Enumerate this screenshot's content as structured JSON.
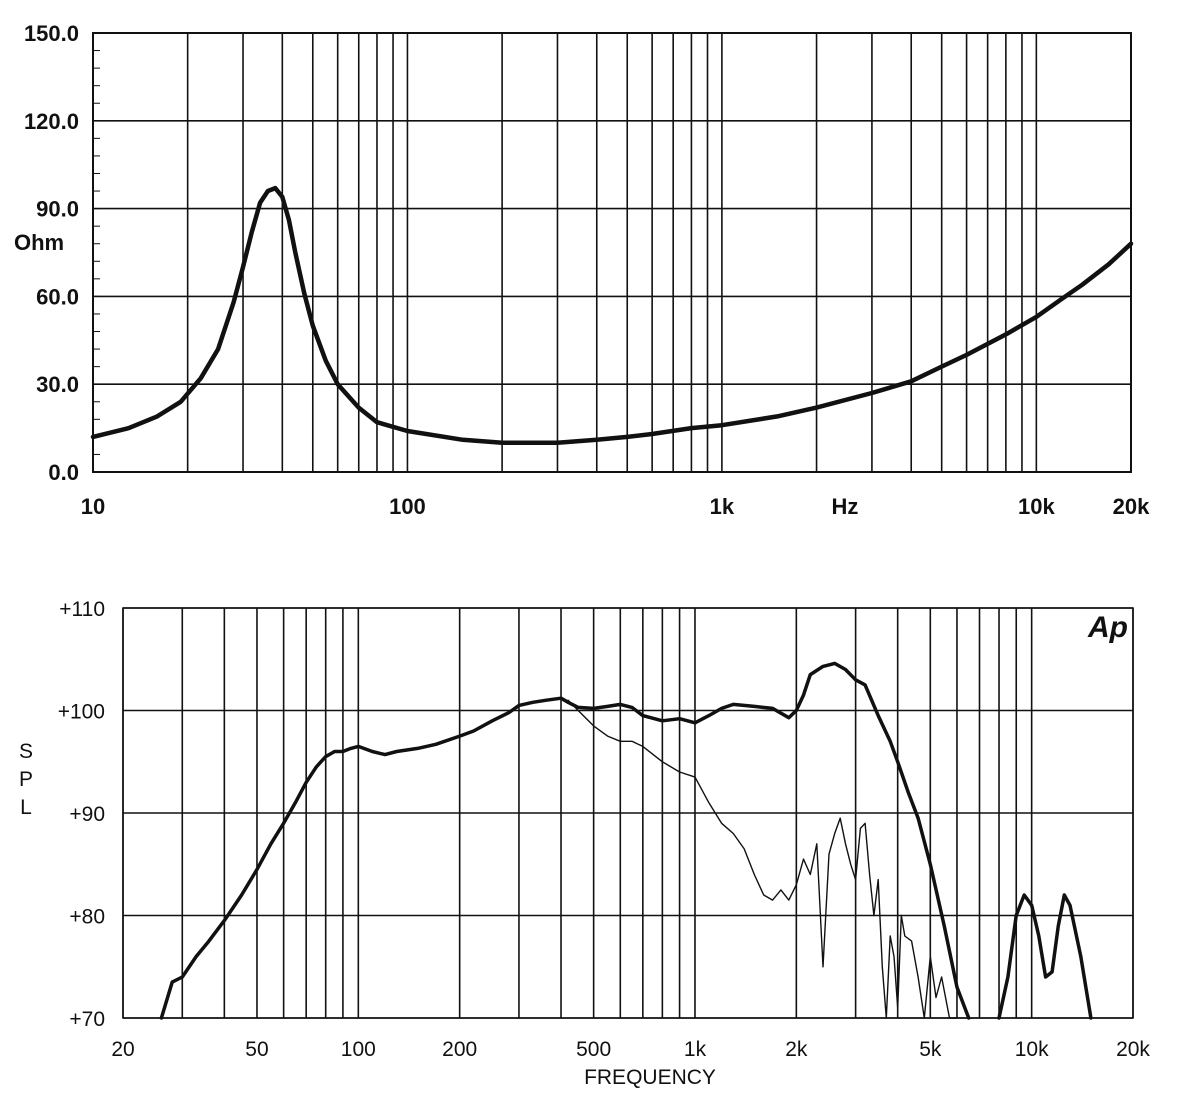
{
  "chart_data": [
    {
      "type": "line",
      "title": "",
      "ylabel": "Ohm",
      "xlabel": "Hz",
      "x_scale": "log",
      "xlim": [
        10,
        20000
      ],
      "ylim": [
        0,
        150
      ],
      "y_ticks": [
        "0.0",
        "30.0",
        "60.0",
        "90.0",
        "120.0",
        "150.0"
      ],
      "x_ticks": [
        {
          "value": 10,
          "label": "10"
        },
        {
          "value": 100,
          "label": "100"
        },
        {
          "value": 1000,
          "label": "1k"
        },
        {
          "value": 10000,
          "label": "10k"
        },
        {
          "value": 20000,
          "label": "20k"
        }
      ],
      "grid": true,
      "series": [
        {
          "x": [
            10,
            13,
            16,
            19,
            22,
            25,
            28,
            30,
            32,
            34,
            36,
            38,
            40,
            42,
            44,
            47,
            50,
            55,
            60,
            70,
            80,
            100,
            150,
            200,
            250,
            300,
            400,
            500,
            600,
            800,
            1000,
            1500,
            2000,
            3000,
            4000,
            5000,
            6000,
            8000,
            10000,
            12000,
            14000,
            17000,
            20000
          ],
          "y": [
            12,
            15,
            19,
            24,
            32,
            42,
            58,
            70,
            82,
            92,
            96,
            97,
            94,
            86,
            75,
            61,
            50,
            38,
            30,
            22,
            17,
            14,
            11,
            10,
            10,
            10,
            11,
            12,
            13,
            15,
            16,
            19,
            22,
            27,
            31,
            36,
            40,
            47,
            53,
            59,
            64,
            71,
            78
          ]
        }
      ]
    },
    {
      "type": "line",
      "title": "",
      "ylabel": "SPL",
      "xlabel": "FREQUENCY",
      "x_scale": "log",
      "xlim": [
        20,
        20000
      ],
      "ylim": [
        70,
        110
      ],
      "y_ticks": [
        "+70",
        "+80",
        "+90",
        "+100",
        "+110"
      ],
      "x_ticks": [
        {
          "value": 20,
          "label": "20"
        },
        {
          "value": 50,
          "label": "50"
        },
        {
          "value": 100,
          "label": "100"
        },
        {
          "value": 200,
          "label": "200"
        },
        {
          "value": 500,
          "label": "500"
        },
        {
          "value": 1000,
          "label": "1k"
        },
        {
          "value": 2000,
          "label": "2k"
        },
        {
          "value": 5000,
          "label": "5k"
        },
        {
          "value": 10000,
          "label": "10k"
        },
        {
          "value": 20000,
          "label": "20k"
        }
      ],
      "grid": true,
      "logo": "Ap",
      "series": [
        {
          "x": [
            26,
            28,
            30,
            33,
            36,
            40,
            45,
            50,
            55,
            60,
            65,
            70,
            75,
            80,
            85,
            90,
            95,
            100,
            110,
            120,
            130,
            150,
            170,
            200,
            220,
            250,
            280,
            300,
            330,
            360,
            400,
            420,
            450,
            500,
            550,
            600,
            650,
            700,
            800,
            900,
            1000,
            1100,
            1200,
            1300,
            1500,
            1700,
            1900,
            2000,
            2100,
            2200,
            2400,
            2600,
            2800,
            3000,
            3200,
            3500,
            3800,
            4000,
            4300,
            4600,
            5000,
            5500,
            6000,
            6500
          ],
          "y": [
            70,
            73.5,
            74,
            76,
            77.5,
            79.5,
            82,
            84.5,
            87,
            89,
            91,
            93,
            94.5,
            95.5,
            96,
            96,
            96.3,
            96.5,
            96,
            95.7,
            96,
            96.3,
            96.7,
            97.5,
            98,
            99,
            99.8,
            100.5,
            100.8,
            101,
            101.2,
            100.8,
            100.3,
            100.2,
            100.4,
            100.6,
            100.3,
            99.5,
            99,
            99.2,
            98.8,
            99.5,
            100.2,
            100.6,
            100.4,
            100.2,
            99.3,
            100,
            101.5,
            103.5,
            104.3,
            104.6,
            104,
            103,
            102.5,
            99.5,
            97,
            95,
            92,
            89.5,
            85,
            79,
            73,
            70
          ]
        },
        {
          "x": [
            8000,
            8500,
            9000,
            9500,
            10000,
            10500,
            11000,
            11500,
            12000,
            12500,
            13000,
            14000,
            15000
          ],
          "y": [
            70,
            74,
            80,
            82,
            81,
            78,
            74,
            74.5,
            79,
            82,
            81,
            76,
            70
          ]
        },
        {
          "x": [
            420,
            450,
            500,
            550,
            600,
            650,
            700,
            800,
            900,
            1000,
            1100,
            1200,
            1300,
            1400,
            1500,
            1600,
            1700,
            1800,
            1900,
            2000,
            2100,
            2200,
            2300,
            2400,
            2500,
            2600,
            2700,
            2800,
            2900,
            3000,
            3100,
            3200,
            3300,
            3400,
            3500,
            3600,
            3700,
            3800,
            3900,
            4000,
            4100,
            4200,
            4400,
            4600,
            4800,
            5000,
            5200,
            5400,
            5700,
            6000
          ],
          "y": [
            101,
            100,
            98.5,
            97.5,
            97,
            97,
            96.5,
            95,
            94,
            93.5,
            91,
            89,
            88,
            86.5,
            84,
            82,
            81.5,
            82.5,
            81.5,
            83,
            85.5,
            84,
            87,
            75,
            86,
            88,
            89.5,
            87,
            85,
            83.5,
            88.5,
            89,
            84,
            80,
            83.5,
            75,
            70,
            78,
            76,
            71,
            80,
            78,
            77.5,
            74,
            70,
            76,
            72,
            74,
            70,
            70
          ]
        }
      ]
    }
  ]
}
